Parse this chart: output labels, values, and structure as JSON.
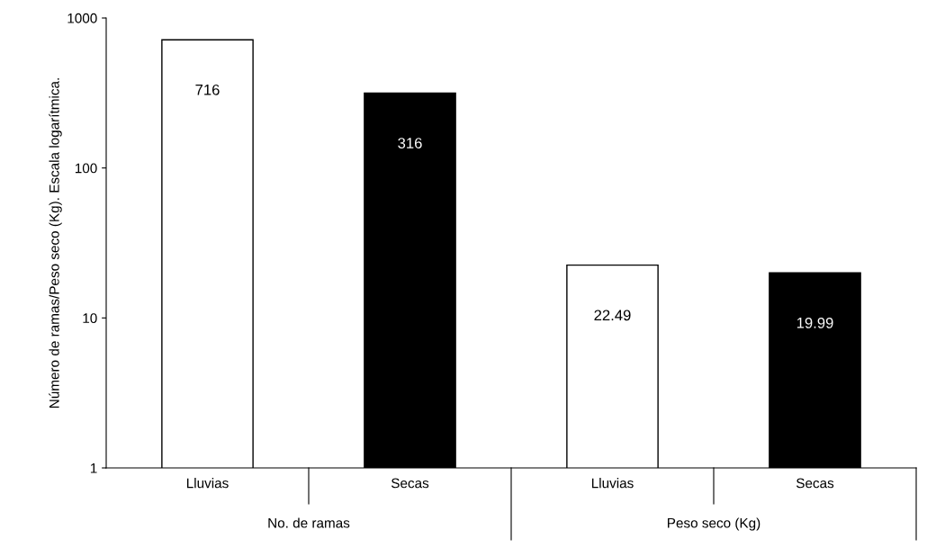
{
  "chart_data": {
    "type": "bar",
    "ylabel": "Número de ramas/Peso seco (Kg). Escala logarítmica.",
    "categories": [
      "Lluvias",
      "Secas",
      "Lluvias",
      "Secas"
    ],
    "values": [
      716,
      316,
      22.49,
      19.99
    ],
    "colors": [
      "#ffffff",
      "#000000",
      "#ffffff",
      "#000000"
    ],
    "log": "y",
    "ylim": [
      1,
      1000
    ],
    "yticks": [
      1,
      10,
      100,
      1000
    ],
    "data_labels": true,
    "grid": false,
    "legend": false,
    "annotations": [
      "No. de ramas",
      "Peso seco (Kg)"
    ]
  }
}
